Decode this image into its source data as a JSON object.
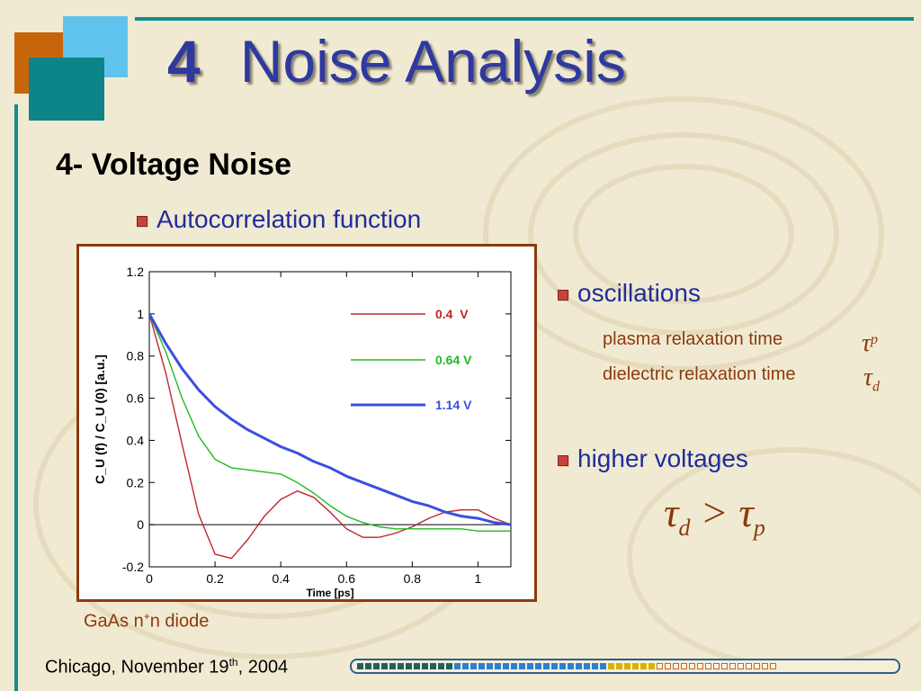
{
  "slide": {
    "title_number": "4",
    "title_text": "Noise Analysis",
    "subtitle": "4- Voltage Noise",
    "bullet_main": "Autocorrelation function",
    "caption_prefix": "GaAs n",
    "caption_sup": "+",
    "caption_suffix": "n diode"
  },
  "right_panel": {
    "oscillations_label": "oscillations",
    "plasma_label": "plasma relaxation time",
    "dielectric_label": "dielectric relaxation time",
    "higher_voltages_label": "higher voltages",
    "tau_symbol": "τ",
    "sub_p": "p",
    "sub_d": "d",
    "greater_than": ">"
  },
  "footer": {
    "text_prefix": "Chicago, November 19",
    "text_sup": "th",
    "text_suffix": ", 2004"
  },
  "colors": {
    "title": "#2e3a9f",
    "accent_brown": "#8b3a0e",
    "teal": "#148c8c",
    "bullet": "#c9413b"
  },
  "progress": {
    "segments": [
      "#1f5f5f",
      "#1f5f5f",
      "#1f5f5f",
      "#1f5f5f",
      "#1f5f5f",
      "#1f5f5f",
      "#1f5f5f",
      "#1f5f5f",
      "#1f5f5f",
      "#1f5f5f",
      "#1f5f5f",
      "#1f5f5f",
      "#2f7fcf",
      "#2f7fcf",
      "#2f7fcf",
      "#2f7fcf",
      "#2f7fcf",
      "#2f7fcf",
      "#2f7fcf",
      "#2f7fcf",
      "#2f7fcf",
      "#2f7fcf",
      "#2f7fcf",
      "#2f7fcf",
      "#2f7fcf",
      "#2f7fcf",
      "#2f7fcf",
      "#2f7fcf",
      "#2f7fcf",
      "#2f7fcf",
      "#2f7fcf",
      "#d9b000",
      "#d9b000",
      "#d9b000",
      "#d9b000",
      "#d9b000",
      "#d9b000",
      "empty",
      "empty",
      "empty",
      "empty",
      "empty",
      "empty",
      "empty",
      "empty",
      "empty",
      "empty",
      "empty",
      "empty",
      "empty",
      "empty",
      "empty"
    ]
  },
  "chart_data": {
    "type": "line",
    "title": "",
    "xlabel": "Time [ps]",
    "ylabel": "C_U (f) / C_U (0)   [a.u.]",
    "xlim": [
      0,
      1.1
    ],
    "ylim": [
      -0.2,
      1.2
    ],
    "xticks": [
      "0",
      "0.2",
      "0.4",
      "0.6",
      "0.8",
      "1"
    ],
    "yticks": [
      "-0.2",
      "0",
      "0.2",
      "0.4",
      "0.6",
      "0.8",
      "1",
      "1.2"
    ],
    "grid": false,
    "legend_position": "top-right",
    "series": [
      {
        "name": "0.4  V",
        "color": "#c0262c",
        "x": [
          0,
          0.05,
          0.1,
          0.15,
          0.2,
          0.25,
          0.3,
          0.35,
          0.4,
          0.45,
          0.5,
          0.55,
          0.6,
          0.65,
          0.7,
          0.75,
          0.8,
          0.85,
          0.9,
          0.95,
          1.0,
          1.05,
          1.1
        ],
        "y": [
          1.0,
          0.72,
          0.38,
          0.05,
          -0.14,
          -0.16,
          -0.07,
          0.04,
          0.12,
          0.16,
          0.13,
          0.06,
          -0.02,
          -0.06,
          -0.06,
          -0.04,
          -0.01,
          0.03,
          0.06,
          0.07,
          0.07,
          0.03,
          0.0
        ]
      },
      {
        "name": "0.64 V",
        "color": "#22bb22",
        "x": [
          0,
          0.05,
          0.1,
          0.15,
          0.2,
          0.25,
          0.3,
          0.35,
          0.4,
          0.45,
          0.5,
          0.55,
          0.6,
          0.65,
          0.7,
          0.75,
          0.8,
          0.85,
          0.9,
          0.95,
          1.0,
          1.05,
          1.1
        ],
        "y": [
          1.0,
          0.82,
          0.6,
          0.42,
          0.31,
          0.27,
          0.26,
          0.25,
          0.24,
          0.2,
          0.15,
          0.09,
          0.04,
          0.01,
          -0.01,
          -0.02,
          -0.02,
          -0.02,
          -0.02,
          -0.02,
          -0.03,
          -0.03,
          -0.03
        ]
      },
      {
        "name": "1.14 V",
        "color": "#3a4fe0",
        "x": [
          0,
          0.05,
          0.1,
          0.15,
          0.2,
          0.25,
          0.3,
          0.35,
          0.4,
          0.45,
          0.5,
          0.55,
          0.6,
          0.65,
          0.7,
          0.75,
          0.8,
          0.85,
          0.9,
          0.95,
          1.0,
          1.05,
          1.1
        ],
        "y": [
          1.0,
          0.86,
          0.74,
          0.64,
          0.56,
          0.5,
          0.45,
          0.41,
          0.37,
          0.34,
          0.3,
          0.27,
          0.23,
          0.2,
          0.17,
          0.14,
          0.11,
          0.09,
          0.06,
          0.04,
          0.03,
          0.01,
          0.0
        ]
      }
    ]
  }
}
